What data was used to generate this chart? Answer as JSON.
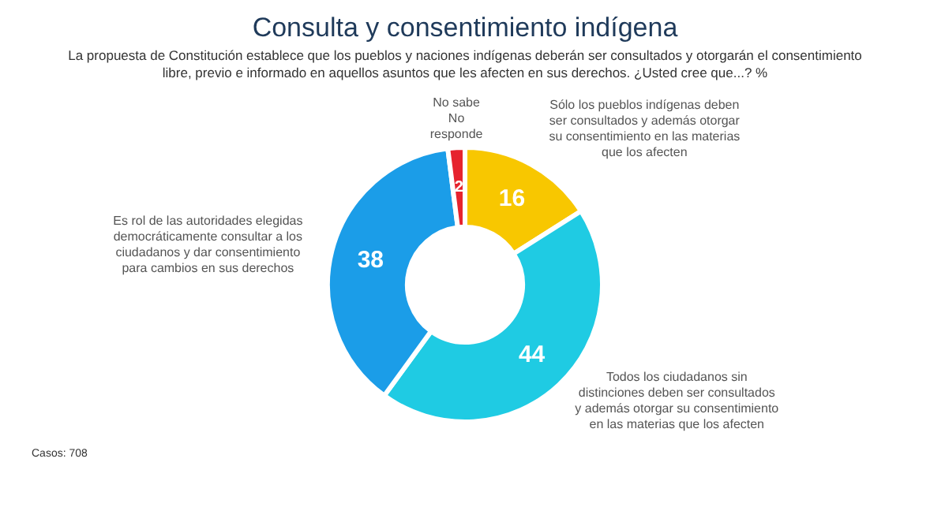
{
  "chart_data": {
    "type": "donut",
    "title": "Consulta y consentimiento indígena",
    "subtitle": "La propuesta de Constitución establece que los pueblos y naciones indígenas deberán ser consultados y otorgarán el consentimiento libre, previo e informado en aquellos asuntos que les afecten en sus derechos. ¿Usted cree que...? %",
    "categories": [
      "Sólo los pueblos indígenas deben ser consultados y además otorgar su consentimiento en las materias que los afecten",
      "Todos los ciudadanos sin distinciones deben ser consultados y además otorgar su consentimiento en las materias que los afecten",
      "Es rol de las autoridades elegidas democráticamente consultar a los ciudadanos y dar consentimiento para cambios en sus derechos",
      "No sabe No responde"
    ],
    "values": [
      16,
      44,
      38,
      2
    ],
    "colors": [
      "#f8c700",
      "#1fcbe3",
      "#1b9de8",
      "#e6232e"
    ],
    "data_labels": true,
    "annotations": [
      "Casos: 708"
    ]
  }
}
